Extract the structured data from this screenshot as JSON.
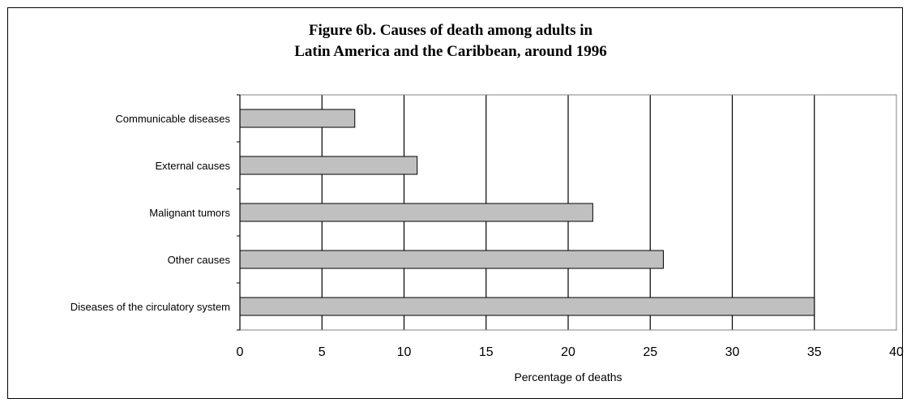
{
  "chart_data": {
    "type": "bar",
    "orientation": "horizontal",
    "title": "Figure 6b. Causes of death among adults in Latin America and the Caribbean, around 1996",
    "title_lines": [
      "Figure 6b. Causes of death among adults in",
      "Latin America and the Caribbean, around 1996"
    ],
    "categories": [
      "Communicable diseases",
      "External causes",
      "Malignant tumors",
      "Other causes",
      "Diseases of the circulatory system"
    ],
    "values": [
      7.0,
      10.8,
      21.5,
      25.8,
      35.0
    ],
    "xlabel": "Percentage of deaths",
    "ylabel": "",
    "xlim": [
      0,
      40
    ],
    "x_ticks": [
      0,
      5,
      10,
      15,
      20,
      25,
      30,
      35,
      40
    ],
    "grid": "vertical",
    "legend": "none",
    "colors": {
      "bar_fill": "#c0c0c0",
      "bar_stroke": "#000000",
      "gridline": "#000000",
      "plot_border": "#808080"
    }
  }
}
